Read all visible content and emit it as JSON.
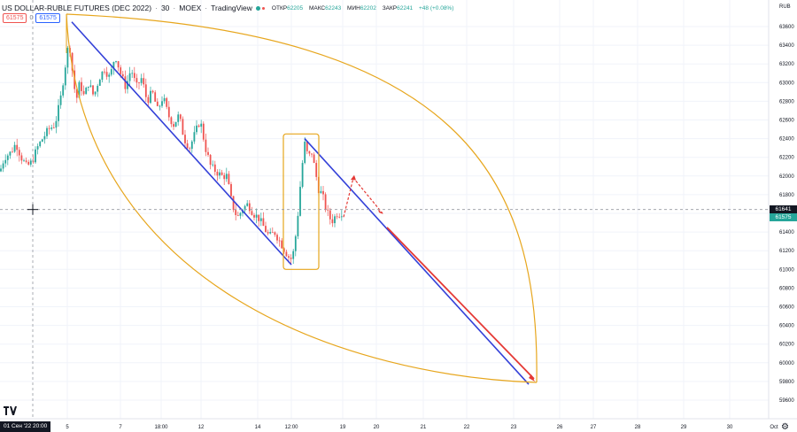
{
  "header": {
    "symbol": "US DOLLAR-RUBLE FUTURES (DEC 2022)",
    "interval": "30",
    "exchange": "MOEX",
    "source": "TradingView",
    "open_label": "ОТКР",
    "open": "62205",
    "high_label": "МАКС",
    "high": "62243",
    "low_label": "МИН",
    "low": "62202",
    "close_label": "ЗАКР",
    "close": "62241",
    "change": "+48 (+0.08%)",
    "sell_price": "61575",
    "spread": "0",
    "buy_price": "61575"
  },
  "axis": {
    "currency": "RUB",
    "crosshair_price": "61641",
    "last_price": "61575",
    "crosshair_time": "01 Сен '22  20:00"
  },
  "colors": {
    "up": "#26a69a",
    "down": "#ef5350",
    "trend_line": "#3340d8",
    "projection": "#e53935",
    "fib_arc": "#e7a61d",
    "crosshair": "#9598a1"
  },
  "icons": {
    "logo": "tradingview-logo-icon",
    "settings": "gear-icon"
  },
  "chart_data": {
    "type": "candlestick",
    "title": "US DOLLAR-RUBLE FUTURES (DEC 2022)",
    "xlabel": "",
    "ylabel": "RUB",
    "ylim": [
      59400,
      63800
    ],
    "y_ticks": [
      59600,
      59800,
      60000,
      60200,
      60400,
      60600,
      60800,
      61000,
      61200,
      61400,
      61600,
      61800,
      62000,
      62200,
      62400,
      62600,
      62800,
      63000,
      63200,
      63400,
      63600
    ],
    "x_ticks": [
      "5",
      "7",
      "18:00",
      "12",
      "14",
      "12:00",
      "19",
      "20",
      "21",
      "22",
      "23",
      "26",
      "27",
      "28",
      "29",
      "30",
      "Oct"
    ],
    "price_path": [
      [
        0,
        62050
      ],
      [
        5,
        62200
      ],
      [
        12,
        62250
      ],
      [
        18,
        62350
      ],
      [
        24,
        62200
      ],
      [
        30,
        62100
      ],
      [
        36,
        62150
      ],
      [
        42,
        62300
      ],
      [
        48,
        62400
      ],
      [
        55,
        62500
      ],
      [
        62,
        62550
      ],
      [
        68,
        62800
      ],
      [
        74,
        63200
      ],
      [
        78,
        63450
      ],
      [
        82,
        63100
      ],
      [
        86,
        62800
      ],
      [
        90,
        63000
      ],
      [
        95,
        62850
      ],
      [
        100,
        63000
      ],
      [
        106,
        62850
      ],
      [
        112,
        63050
      ],
      [
        118,
        63150
      ],
      [
        124,
        63050
      ],
      [
        130,
        63300
      ],
      [
        136,
        63100
      ],
      [
        142,
        62950
      ],
      [
        148,
        63150
      ],
      [
        154,
        62950
      ],
      [
        160,
        63050
      ],
      [
        166,
        62800
      ],
      [
        172,
        62900
      ],
      [
        178,
        62700
      ],
      [
        184,
        62850
      ],
      [
        190,
        62650
      ],
      [
        196,
        62550
      ],
      [
        202,
        62650
      ],
      [
        208,
        62400
      ],
      [
        214,
        62300
      ],
      [
        220,
        62450
      ],
      [
        226,
        62600
      ],
      [
        232,
        62300
      ],
      [
        238,
        62100
      ],
      [
        244,
        62050
      ],
      [
        250,
        62000
      ],
      [
        256,
        62000
      ],
      [
        262,
        61700
      ],
      [
        268,
        61550
      ],
      [
        274,
        61650
      ],
      [
        280,
        61700
      ],
      [
        286,
        61600
      ],
      [
        292,
        61550
      ],
      [
        298,
        61450
      ],
      [
        304,
        61350
      ],
      [
        310,
        61400
      ],
      [
        316,
        61300
      ],
      [
        322,
        61200
      ],
      [
        328,
        61100
      ],
      [
        332,
        61200
      ],
      [
        336,
        61550
      ],
      [
        340,
        62000
      ],
      [
        344,
        62350
      ],
      [
        348,
        62200
      ],
      [
        352,
        62250
      ],
      [
        356,
        62050
      ],
      [
        360,
        61850
      ],
      [
        364,
        61800
      ],
      [
        368,
        61650
      ],
      [
        372,
        61550
      ],
      [
        376,
        61520
      ],
      [
        380,
        61600
      ],
      [
        384,
        61600
      ],
      [
        387,
        61620
      ]
    ],
    "drawings": [
      {
        "name": "trend_line",
        "from": [
          "5",
          63650
        ],
        "to": [
          "12:00",
          61050
        ]
      },
      {
        "name": "trend_line",
        "from": [
          "12:00",
          62400
        ],
        "to": [
          "23",
          59770
        ]
      },
      {
        "name": "projection_line",
        "style": "solid",
        "from": [
          "20",
          61450
        ],
        "to": [
          "23",
          59800
        ]
      },
      {
        "name": "projection_path",
        "style": "dashed",
        "points": [
          [
            "19",
            61550
          ],
          [
            "19",
            61980
          ],
          [
            "20",
            61600
          ]
        ]
      },
      {
        "name": "highlight_box",
        "x_from": "12:00",
        "x_to": "19",
        "y_from": 61000,
        "y_to": 62450
      },
      {
        "name": "fib_arcs",
        "from": [
          "5",
          63700
        ],
        "to": [
          "23",
          59770
        ]
      }
    ]
  }
}
